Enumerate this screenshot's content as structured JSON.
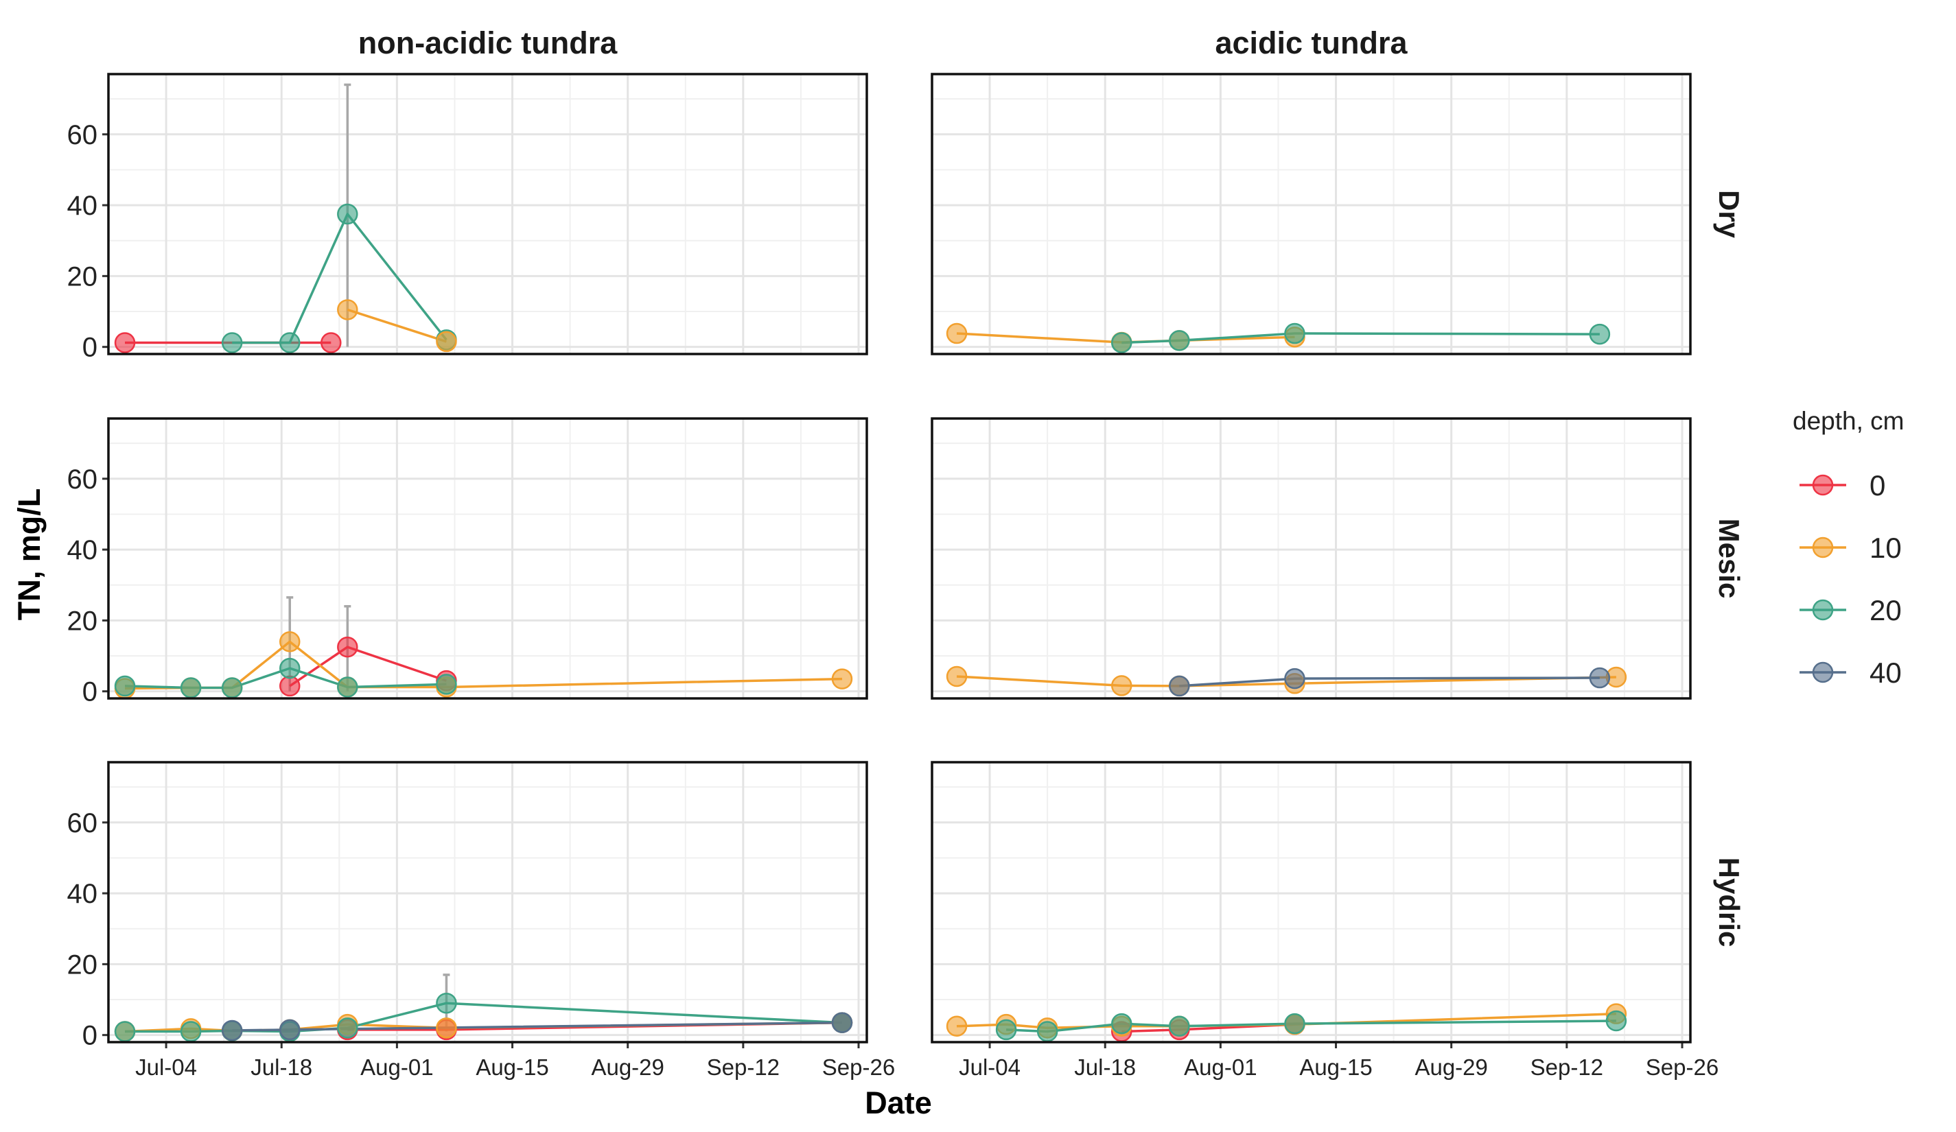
{
  "chart_data": {
    "type": "line",
    "xlabel": "Date",
    "ylabel": "TN, mg/L",
    "ylim": [
      -2,
      77
    ],
    "y_ticks": [
      0,
      20,
      40,
      60
    ],
    "x_range": [
      "2014-06-27",
      "2014-09-27"
    ],
    "x_ticks": [
      {
        "date": "2014-07-04",
        "label": "Jul-04"
      },
      {
        "date": "2014-07-18",
        "label": "Jul-18"
      },
      {
        "date": "2014-08-01",
        "label": "Aug-01"
      },
      {
        "date": "2014-08-15",
        "label": "Aug-15"
      },
      {
        "date": "2014-08-29",
        "label": "Aug-29"
      },
      {
        "date": "2014-09-12",
        "label": "Sep-12"
      },
      {
        "date": "2014-09-26",
        "label": "Sep-26"
      }
    ],
    "grid": true,
    "columns": [
      "non-acidic tundra",
      "acidic tundra"
    ],
    "rows": [
      "Dry",
      "Mesic",
      "Hydric"
    ],
    "legend": {
      "title": "depth, cm",
      "position": "right",
      "items": [
        {
          "label": "0",
          "color": "#ee3344"
        },
        {
          "label": "10",
          "color": "#f2a02e"
        },
        {
          "label": "20",
          "color": "#3ea386"
        },
        {
          "label": "40",
          "color": "#566f8c"
        }
      ]
    },
    "panels": [
      {
        "column": "non-acidic tundra",
        "row": "Dry",
        "series": [
          {
            "depth": "0",
            "points": [
              [
                "2014-06-29",
                1.2
              ],
              [
                "2014-07-24",
                1.2
              ]
            ]
          },
          {
            "depth": "20",
            "points": [
              [
                "2014-07-12",
                1.2
              ],
              [
                "2014-07-19",
                1.2
              ],
              [
                "2014-07-26",
                37.5
              ],
              [
                "2014-08-07",
                2.0
              ]
            ]
          },
          {
            "depth": "10",
            "points": [
              [
                "2014-07-26",
                10.5
              ],
              [
                "2014-08-07",
                1.5
              ]
            ]
          }
        ],
        "error_bars": [
          {
            "date": "2014-07-26",
            "low": 0,
            "high": 74
          }
        ]
      },
      {
        "column": "acidic tundra",
        "row": "Dry",
        "series": [
          {
            "depth": "10",
            "points": [
              [
                "2014-06-30",
                3.8
              ],
              [
                "2014-07-20",
                1.3
              ],
              [
                "2014-07-27",
                1.8
              ],
              [
                "2014-08-10",
                2.8
              ]
            ]
          },
          {
            "depth": "20",
            "points": [
              [
                "2014-07-20",
                1.2
              ],
              [
                "2014-07-27",
                1.8
              ],
              [
                "2014-08-10",
                3.8
              ],
              [
                "2014-09-16",
                3.6
              ]
            ]
          }
        ],
        "error_bars": []
      },
      {
        "column": "non-acidic tundra",
        "row": "Mesic",
        "series": [
          {
            "depth": "0",
            "points": [
              [
                "2014-07-19",
                1.5
              ],
              [
                "2014-07-26",
                12.5
              ],
              [
                "2014-08-07",
                3.0
              ]
            ]
          },
          {
            "depth": "10",
            "points": [
              [
                "2014-06-29",
                0.8
              ],
              [
                "2014-07-07",
                1.0
              ],
              [
                "2014-07-12",
                1.0
              ],
              [
                "2014-07-19",
                14.0
              ],
              [
                "2014-07-26",
                1.2
              ],
              [
                "2014-08-07",
                1.2
              ],
              [
                "2014-09-24",
                3.5
              ]
            ]
          },
          {
            "depth": "20",
            "points": [
              [
                "2014-06-29",
                1.5
              ],
              [
                "2014-07-07",
                1.0
              ],
              [
                "2014-07-12",
                1.0
              ],
              [
                "2014-07-19",
                6.5
              ],
              [
                "2014-07-26",
                1.2
              ],
              [
                "2014-08-07",
                2.0
              ]
            ]
          }
        ],
        "error_bars": [
          {
            "date": "2014-07-19",
            "low": 0,
            "high": 26.5
          },
          {
            "date": "2014-07-26",
            "low": 0,
            "high": 24
          }
        ]
      },
      {
        "column": "acidic tundra",
        "row": "Mesic",
        "series": [
          {
            "depth": "10",
            "points": [
              [
                "2014-06-30",
                4.2
              ],
              [
                "2014-07-20",
                1.6
              ],
              [
                "2014-07-27",
                1.5
              ],
              [
                "2014-08-10",
                2.2
              ],
              [
                "2014-09-18",
                4.0
              ]
            ]
          },
          {
            "depth": "40",
            "points": [
              [
                "2014-07-27",
                1.5
              ],
              [
                "2014-08-10",
                3.6
              ],
              [
                "2014-09-16",
                3.8
              ]
            ]
          }
        ],
        "error_bars": []
      },
      {
        "column": "non-acidic tundra",
        "row": "Hydric",
        "series": [
          {
            "depth": "0",
            "points": [
              [
                "2014-07-26",
                1.5
              ],
              [
                "2014-08-07",
                1.5
              ],
              [
                "2014-09-24",
                3.5
              ]
            ]
          },
          {
            "depth": "10",
            "points": [
              [
                "2014-06-29",
                1.0
              ],
              [
                "2014-07-07",
                1.8
              ],
              [
                "2014-07-12",
                1.2
              ],
              [
                "2014-07-19",
                1.5
              ],
              [
                "2014-07-26",
                3.0
              ],
              [
                "2014-08-07",
                2.0
              ],
              [
                "2014-09-24",
                3.5
              ]
            ]
          },
          {
            "depth": "20",
            "points": [
              [
                "2014-06-29",
                1.0
              ],
              [
                "2014-07-07",
                1.0
              ],
              [
                "2014-07-12",
                1.2
              ],
              [
                "2014-07-19",
                1.0
              ],
              [
                "2014-07-26",
                2.0
              ],
              [
                "2014-08-07",
                9.0
              ],
              [
                "2014-09-24",
                3.5
              ]
            ]
          },
          {
            "depth": "40",
            "points": [
              [
                "2014-07-12",
                1.3
              ],
              [
                "2014-07-19",
                1.5
              ],
              [
                "2014-09-24",
                3.5
              ]
            ]
          }
        ],
        "error_bars": [
          {
            "date": "2014-08-07",
            "low": 1,
            "high": 17
          }
        ]
      },
      {
        "column": "acidic tundra",
        "row": "Hydric",
        "series": [
          {
            "depth": "0",
            "points": [
              [
                "2014-07-20",
                1.0
              ],
              [
                "2014-07-27",
                1.5
              ],
              [
                "2014-08-10",
                3.0
              ]
            ]
          },
          {
            "depth": "10",
            "points": [
              [
                "2014-06-30",
                2.5
              ],
              [
                "2014-07-06",
                3.0
              ],
              [
                "2014-07-11",
                2.0
              ],
              [
                "2014-07-20",
                2.5
              ],
              [
                "2014-07-27",
                2.5
              ],
              [
                "2014-08-10",
                3.0
              ],
              [
                "2014-09-18",
                6.0
              ]
            ]
          },
          {
            "depth": "20",
            "points": [
              [
                "2014-07-06",
                1.5
              ],
              [
                "2014-07-11",
                1.0
              ],
              [
                "2014-07-20",
                3.2
              ],
              [
                "2014-07-27",
                2.5
              ],
              [
                "2014-08-10",
                3.2
              ],
              [
                "2014-09-18",
                4.0
              ]
            ]
          }
        ],
        "error_bars": []
      }
    ]
  }
}
